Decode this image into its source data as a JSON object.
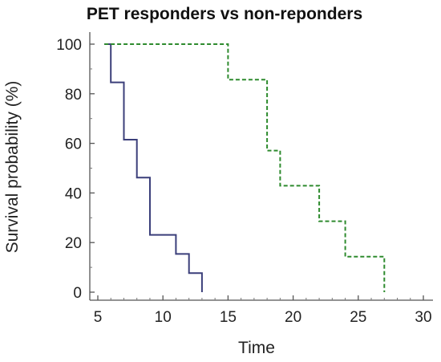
{
  "chart_data": {
    "type": "line",
    "title": "PET responders vs non-reponders",
    "xlabel": "Time",
    "ylabel": "Survival probability (%)",
    "xlim": [
      5,
      30
    ],
    "ylim": [
      0,
      100
    ],
    "x_ticks": [
      "5",
      "10",
      "15",
      "20",
      "25",
      "30"
    ],
    "y_ticks": [
      "0",
      "20",
      "40",
      "60",
      "80",
      "100"
    ],
    "grid": false,
    "legend": "none",
    "series": [
      {
        "style": "solid",
        "color": "#3b3f7a",
        "x": [
          5.5,
          6,
          6,
          7,
          7,
          8,
          8,
          9,
          9,
          11,
          11,
          12,
          12,
          13,
          13
        ],
        "y": [
          100,
          100,
          84.6,
          84.6,
          61.5,
          61.5,
          46.2,
          46.2,
          23.1,
          23.1,
          15.4,
          15.4,
          7.7,
          7.7,
          0
        ]
      },
      {
        "style": "dashed",
        "color": "#2e8b2e",
        "x": [
          5.5,
          15,
          15,
          18,
          18,
          19,
          19,
          22,
          22,
          24,
          24,
          27,
          27
        ],
        "y": [
          100,
          100,
          85.7,
          85.7,
          57.1,
          57.1,
          42.9,
          42.9,
          28.6,
          28.6,
          14.3,
          14.3,
          0
        ]
      }
    ]
  }
}
